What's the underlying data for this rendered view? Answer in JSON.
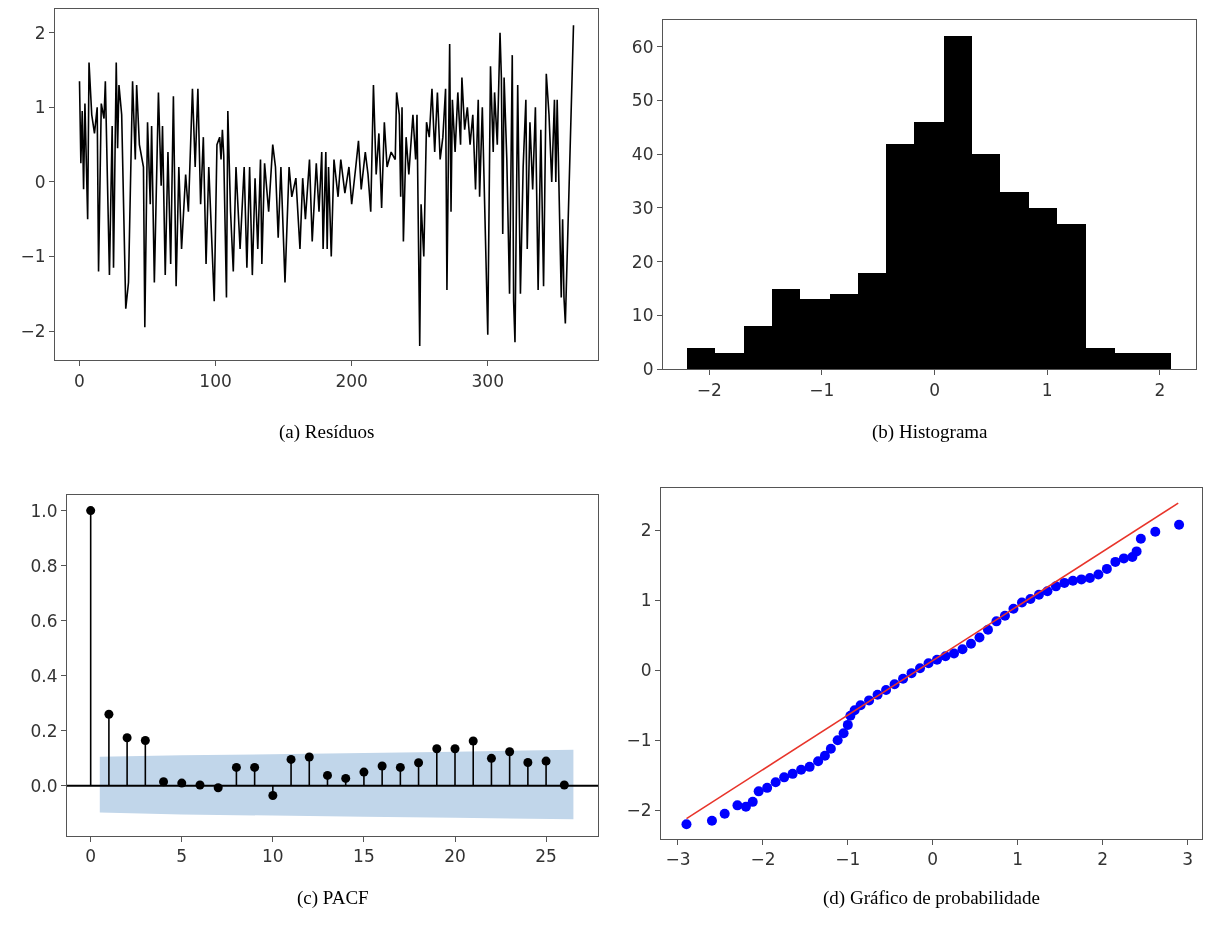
{
  "chart_data": [
    {
      "type": "line",
      "title": "(a) Resíduos",
      "xlim": [
        -18,
        381
      ],
      "ylim": [
        -2.39,
        2.32
      ],
      "xticks": [
        0,
        100,
        200,
        300
      ],
      "yticks": [
        -2,
        -1,
        0,
        1,
        2
      ],
      "series": [
        {
          "type": "line",
          "color": "#000000",
          "x": [
            0,
            1,
            2,
            3,
            4,
            6,
            7,
            9,
            11,
            13,
            14,
            16,
            18,
            19,
            22,
            24,
            25,
            27,
            28,
            29,
            31,
            34,
            36,
            39,
            41,
            42,
            44,
            47,
            48,
            50,
            52,
            53,
            55,
            58,
            60,
            61,
            63,
            65,
            67,
            69,
            71,
            73,
            75,
            78,
            80,
            83,
            85,
            87,
            89,
            91,
            93,
            95,
            97,
            99,
            101,
            103,
            104,
            105,
            106,
            108,
            109,
            111,
            113,
            115,
            118,
            121,
            123,
            125,
            127,
            129,
            131,
            133,
            134,
            136,
            139,
            142,
            144,
            146,
            148,
            151,
            154,
            156,
            159,
            162,
            164,
            166,
            169,
            171,
            174,
            176,
            178,
            179,
            181,
            182,
            183,
            185,
            187,
            190,
            192,
            195,
            198,
            200,
            203,
            205,
            207,
            210,
            212,
            214,
            216,
            218,
            220,
            222,
            224,
            226,
            229,
            232,
            233,
            235,
            236,
            237,
            238,
            240,
            242,
            245,
            247,
            248,
            250,
            251,
            253,
            255,
            257,
            259,
            261,
            263,
            265,
            267,
            269,
            270,
            272,
            273,
            274,
            276,
            278,
            280,
            281,
            283,
            285,
            287,
            289,
            291,
            293,
            294,
            296,
            300,
            302,
            304,
            305,
            307,
            309,
            310,
            311,
            312,
            314,
            316,
            318,
            319,
            320,
            322,
            324,
            326,
            328,
            329,
            331,
            333,
            335,
            337,
            339,
            341,
            343,
            345,
            347,
            349,
            350,
            351,
            354,
            355,
            356,
            357,
            363
          ],
          "values": [
            1.35,
            0.25,
            0.95,
            -0.1,
            1.05,
            -0.5,
            1.6,
            0.9,
            0.65,
            1.0,
            -1.2,
            1.05,
            0.85,
            1.35,
            -1.25,
            0.75,
            -1.15,
            1.6,
            0.45,
            1.3,
            0.9,
            -1.7,
            -1.35,
            1.35,
            0.3,
            1.3,
            0.5,
            0.2,
            -1.95,
            0.8,
            -0.3,
            0.75,
            -1.35,
            1.2,
            -0.05,
            0.75,
            -1.25,
            0.4,
            -1.1,
            1.15,
            -1.4,
            0.2,
            -0.9,
            0.1,
            -0.4,
            1.25,
            0.2,
            1.25,
            -0.3,
            0.6,
            -1.1,
            0.2,
            -0.7,
            -1.6,
            0.5,
            0.6,
            0.3,
            0.7,
            0.35,
            -1.55,
            0.95,
            -0.4,
            -1.2,
            0.2,
            -0.9,
            0.2,
            -1.15,
            0.2,
            -1.25,
            0.05,
            -0.9,
            0.3,
            -1.1,
            0.25,
            -0.4,
            0.5,
            0.2,
            -0.75,
            0.2,
            -1.35,
            0.2,
            -0.2,
            0.05,
            -0.9,
            0.05,
            -0.5,
            0.3,
            -0.8,
            0.25,
            -0.4,
            0.4,
            -0.9,
            0.4,
            -0.9,
            0.2,
            -1.0,
            0.3,
            -0.2,
            0.3,
            -0.15,
            0.2,
            -0.3,
            0.2,
            0.55,
            -0.1,
            0.4,
            0.1,
            -0.4,
            1.3,
            0.1,
            0.65,
            -0.35,
            0.8,
            0.2,
            0.4,
            0.3,
            1.2,
            0.9,
            -0.2,
            1.0,
            -0.8,
            0.6,
            0.1,
            0.9,
            0.3,
            0.9,
            -2.2,
            -0.3,
            -1.0,
            0.8,
            0.6,
            1.25,
            0.4,
            1.2,
            0.3,
            0.6,
            1.25,
            -1.45,
            1.85,
            -0.4,
            1.1,
            0.4,
            1.2,
            0.5,
            1.4,
            0.7,
            1.0,
            0.5,
            0.9,
            -0.1,
            1.1,
            -0.2,
            1.0,
            -2.05,
            1.55,
            0.4,
            1.2,
            0.5,
            2.0,
            1.4,
            -0.7,
            1.4,
            0.3,
            -1.5,
            1.7,
            -1.6,
            -2.15,
            1.3,
            -1.5,
            0.2,
            1.1,
            -0.9,
            0.8,
            -0.1,
            1.0,
            -1.45,
            0.7,
            -1.4,
            1.45,
            0.9,
            0.0,
            1.1,
            0.0,
            1.1,
            -1.55,
            -0.5,
            -1.55,
            -1.9,
            2.1
          ]
        }
      ]
    },
    {
      "type": "histogram",
      "title": "(b) Histograma",
      "xlim": [
        -2.41,
        2.32
      ],
      "ylim": [
        0,
        65
      ],
      "xticks": [
        -2,
        -1,
        0,
        1,
        2
      ],
      "yticks": [
        0,
        10,
        20,
        30,
        40,
        50,
        60
      ],
      "color": "#000000",
      "bins": [
        -2.2,
        -1.95,
        -1.69,
        -1.44,
        -1.19,
        -0.93,
        -0.68,
        -0.43,
        -0.18,
        0.08,
        0.33,
        0.58,
        0.84,
        1.09,
        1.34,
        1.6,
        1.85,
        2.1
      ],
      "values": [
        4,
        3,
        8,
        15,
        13,
        14,
        18,
        42,
        46,
        62,
        40,
        33,
        30,
        27,
        4,
        3,
        3
      ]
    },
    {
      "type": "lollipop",
      "title": "(c) PACF",
      "xlim": [
        -1.3,
        27.85
      ],
      "ylim": [
        -0.182,
        1.058
      ],
      "xticks": [
        0,
        5,
        10,
        15,
        20,
        25
      ],
      "yticks": [
        {
          "value": 0,
          "label": "0.0"
        },
        0.2,
        0.4,
        0.6,
        0.8,
        {
          "value": 1,
          "label": "1.0"
        }
      ],
      "ref_lines": [
        {
          "axis": "y",
          "value": 0,
          "color": "#000000"
        }
      ],
      "series": [
        {
          "type": "area",
          "color": "#c1d6ea",
          "x": [
            0.5,
            5,
            10,
            15,
            20,
            26.5
          ],
          "values": [
            0.106,
            0.111,
            0.115,
            0.119,
            0.124,
            0.131
          ]
        },
        {
          "type": "area",
          "color": "#c1d6ea",
          "x": [
            0.5,
            5,
            10,
            15,
            20,
            26.5
          ],
          "values": [
            -0.097,
            -0.104,
            -0.108,
            -0.112,
            -0.116,
            -0.121
          ]
        },
        {
          "type": "lollipop",
          "color": "#000000",
          "marker": "circle",
          "x": [
            0,
            1,
            2,
            3,
            4,
            5,
            6,
            7,
            8,
            9,
            10,
            11,
            12,
            13,
            14,
            15,
            16,
            17,
            18,
            19,
            20,
            21,
            22,
            23,
            24,
            25,
            26
          ],
          "values": [
            1.0,
            0.26,
            0.175,
            0.165,
            0.015,
            0.01,
            0.003,
            -0.007,
            0.067,
            0.067,
            -0.035,
            0.096,
            0.105,
            0.038,
            0.027,
            0.05,
            0.072,
            0.067,
            0.084,
            0.135,
            0.135,
            0.163,
            0.1,
            0.124,
            0.085,
            0.09,
            0.003
          ]
        }
      ]
    },
    {
      "type": "scatter",
      "title": "(d) Gráfico de probabilidade",
      "xlim": [
        -3.2,
        3.17
      ],
      "ylim": [
        -2.41,
        2.61
      ],
      "xticks": [
        -3,
        -2,
        -1,
        0,
        1,
        2,
        3
      ],
      "yticks": [
        -2,
        -1,
        0,
        1,
        2
      ],
      "series": [
        {
          "type": "scatter",
          "color": "#0000ff",
          "marker": "circle",
          "x": [
            -2.9,
            -2.6,
            -2.45,
            -2.3,
            -2.2,
            -2.12,
            -2.05,
            -1.95,
            -1.85,
            -1.75,
            -1.65,
            -1.55,
            -1.45,
            -1.35,
            -1.27,
            -1.2,
            -1.12,
            -1.05,
            -1.0,
            -0.97,
            -0.92,
            -0.85,
            -0.75,
            -0.65,
            -0.55,
            -0.45,
            -0.35,
            -0.25,
            -0.15,
            -0.05,
            0.05,
            0.15,
            0.25,
            0.35,
            0.45,
            0.55,
            0.65,
            0.75,
            0.85,
            0.95,
            1.05,
            1.15,
            1.25,
            1.35,
            1.45,
            1.55,
            1.65,
            1.75,
            1.85,
            1.95,
            2.05,
            2.15,
            2.25,
            2.35,
            2.4,
            2.45,
            2.62,
            2.9
          ],
          "values": [
            -2.2,
            -2.15,
            -2.05,
            -1.93,
            -1.95,
            -1.88,
            -1.73,
            -1.68,
            -1.6,
            -1.53,
            -1.48,
            -1.42,
            -1.38,
            -1.3,
            -1.22,
            -1.12,
            -1.0,
            -0.9,
            -0.78,
            -0.65,
            -0.57,
            -0.5,
            -0.43,
            -0.35,
            -0.28,
            -0.2,
            -0.12,
            -0.04,
            0.03,
            0.1,
            0.15,
            0.2,
            0.24,
            0.3,
            0.38,
            0.47,
            0.58,
            0.7,
            0.78,
            0.88,
            0.97,
            1.02,
            1.08,
            1.13,
            1.2,
            1.25,
            1.28,
            1.3,
            1.32,
            1.37,
            1.45,
            1.55,
            1.6,
            1.62,
            1.7,
            1.88,
            1.98,
            2.08
          ]
        },
        {
          "type": "line",
          "color": "#e8342a",
          "x": [
            -2.9,
            2.89
          ],
          "values": [
            -2.12,
            2.39
          ]
        }
      ]
    }
  ]
}
